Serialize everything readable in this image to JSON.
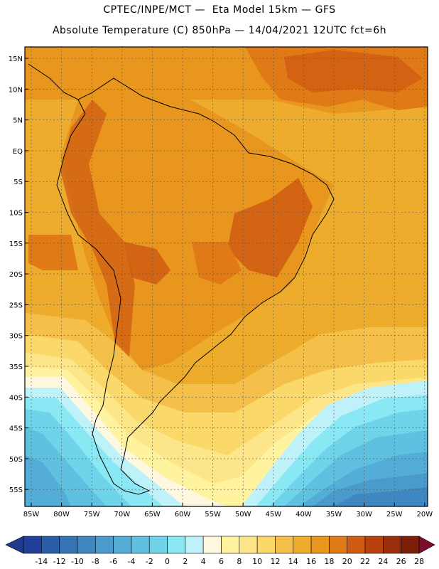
{
  "title_line1": "CPTEC/INPE/MCT —  Eta Model 15km — GFS",
  "title_line2": "Absolute Temperature (C) 850hPa — 14/04/2021 12UTC fct=6h",
  "lat_labels": [
    "15N",
    "10N",
    "5N",
    "EQ",
    "5S",
    "10S",
    "15S",
    "20S",
    "25S",
    "30S",
    "35S",
    "40S",
    "45S",
    "50S",
    "55S"
  ],
  "lon_labels": [
    "85W",
    "80W",
    "75W",
    "70W",
    "65W",
    "60W",
    "55W",
    "50W",
    "45W",
    "40W",
    "35W",
    "30W",
    "25W",
    "20W"
  ],
  "colorbar": {
    "labels": [
      "-14",
      "-12",
      "-10",
      "-8",
      "-6",
      "-4",
      "-2",
      "0",
      "2",
      "4",
      "6",
      "8",
      "10",
      "12",
      "14",
      "16",
      "18",
      "20",
      "22",
      "24",
      "26",
      "28"
    ],
    "colors": [
      "#22409a",
      "#2a5ca8",
      "#3573b5",
      "#3f87c0",
      "#4a9bcc",
      "#54add6",
      "#5fc0e0",
      "#6fd4ea",
      "#8ae8f4",
      "#bff1f8",
      "#fff8e1",
      "#fff3a0",
      "#fde68a",
      "#fbd86a",
      "#f5c04a",
      "#eeac2c",
      "#e8961e",
      "#df7a17",
      "#cf5c12",
      "#b8420e",
      "#9a2e0b",
      "#7d1e09"
    ],
    "low_color": "#1f3a8f",
    "high_color": "#7a0e2c"
  }
}
